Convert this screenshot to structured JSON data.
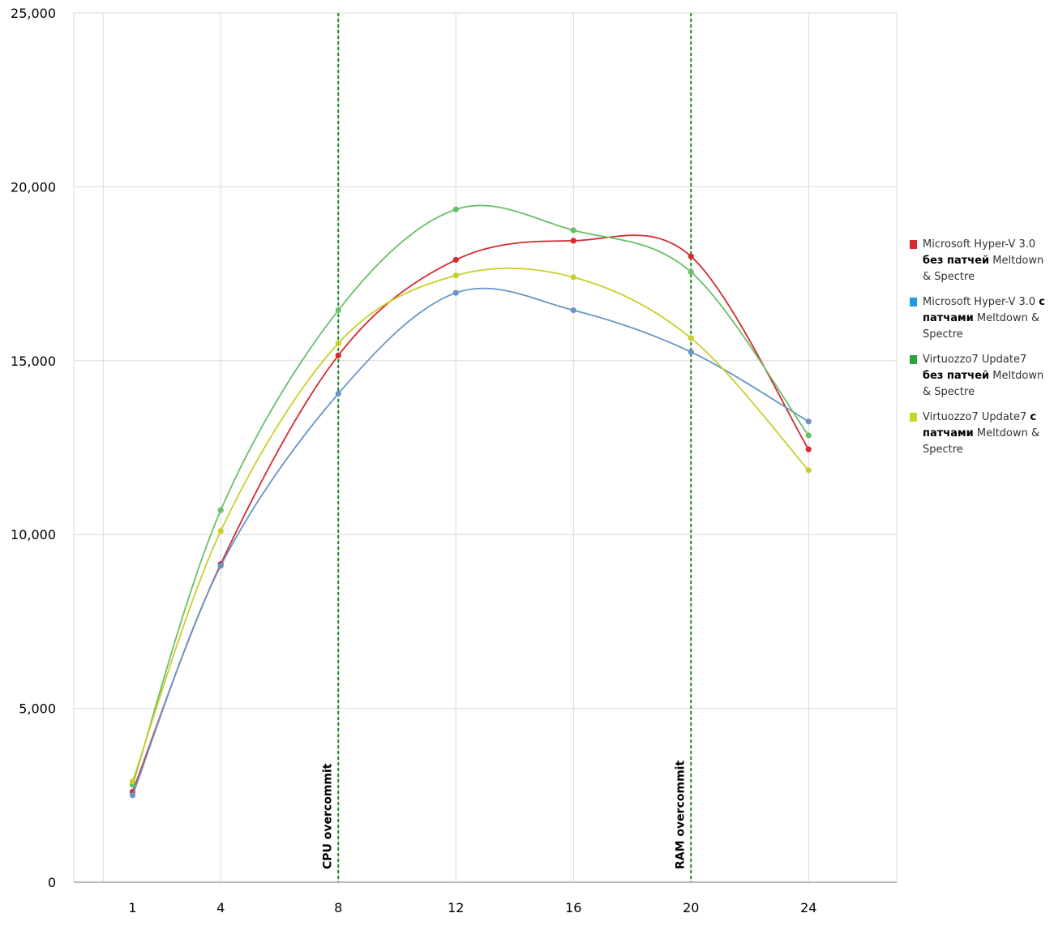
{
  "chart_data": {
    "type": "line",
    "title": "",
    "xlabel": "",
    "ylabel": "",
    "x": [
      1,
      4,
      8,
      12,
      16,
      20,
      24
    ],
    "x_ticks": [
      "1",
      "4",
      "8",
      "12",
      "16",
      "20",
      "24"
    ],
    "y_ticks": [
      "0",
      "5,000",
      "10,000",
      "15,000",
      "20,000",
      "25,000"
    ],
    "xlim": [
      -1,
      27
    ],
    "ylim": [
      0,
      25000
    ],
    "grid": true,
    "legend_position": "right",
    "series": [
      {
        "name_parts": [
          "Microsoft Hyper-V 3.0 ",
          "без патчей",
          " Meltdown & Spectre"
        ],
        "color": "#d42a30",
        "values": [
          2600,
          9150,
          15150,
          17900,
          18450,
          18000,
          12450
        ]
      },
      {
        "name_parts": [
          "Microsoft Hyper-V 3.0 ",
          "с патчами",
          " Meltdown & Spectre"
        ],
        "color": "#6796c6",
        "legend_color": "#1a9ee0",
        "values": [
          2500,
          9100,
          14050,
          16950,
          16450,
          15250,
          13250
        ]
      },
      {
        "name_parts": [
          "Virtuozzo7 Update7 ",
          "без патчей",
          " Meltdown & Spectre"
        ],
        "color": "#6abf68",
        "legend_color": "#2aa33d",
        "values": [
          2800,
          10700,
          16450,
          19350,
          18750,
          17550,
          12850
        ]
      },
      {
        "name_parts": [
          "Virtuozzo7 Update7 ",
          "с патчами",
          " Meltdown & Spectre"
        ],
        "color": "#c9cf2a",
        "legend_color": "#c8d81e",
        "values": [
          2900,
          10100,
          15500,
          17450,
          17400,
          15650,
          11850
        ]
      }
    ],
    "annotations": [
      {
        "x": 8,
        "label": "CPU overcommit",
        "color": "#1a8a1a"
      },
      {
        "x": 20,
        "label": "RAM overcommit",
        "color": "#1a8a1a"
      }
    ]
  }
}
